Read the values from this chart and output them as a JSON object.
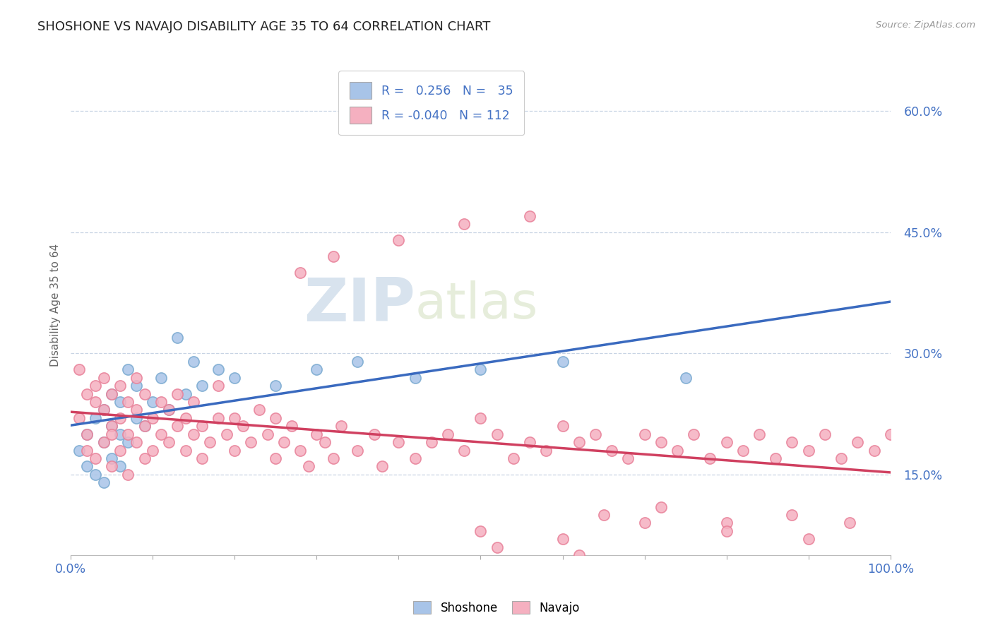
{
  "title": "SHOSHONE VS NAVAJO DISABILITY AGE 35 TO 64 CORRELATION CHART",
  "source_text": "Source: ZipAtlas.com",
  "ylabel": "Disability Age 35 to 64",
  "xlim": [
    0,
    100
  ],
  "ylim": [
    5,
    67
  ],
  "yticks": [
    15,
    30,
    45,
    60
  ],
  "xticks": [
    0,
    10,
    20,
    30,
    40,
    50,
    60,
    70,
    80,
    90,
    100
  ],
  "shoshone_color": "#a8c4e8",
  "shoshone_edge": "#7aaad0",
  "navajo_color": "#f5b0c0",
  "navajo_edge": "#e88098",
  "shoshone_line_color": "#3a6abf",
  "navajo_line_color": "#d04060",
  "shoshone_R": 0.256,
  "shoshone_N": 35,
  "navajo_R": -0.04,
  "navajo_N": 112,
  "watermark_zip": "ZIP",
  "watermark_atlas": "atlas",
  "bg_color": "#ffffff",
  "plot_bg": "#ffffff",
  "grid_color": "#c8d4e4",
  "title_color": "#222222",
  "axis_num_color": "#4472c4",
  "ylabel_color": "#666666",
  "legend_r_eq_color": "#333333",
  "legend_num_color": "#4472c4",
  "shoshone_x": [
    1,
    2,
    2,
    3,
    3,
    4,
    4,
    4,
    5,
    5,
    5,
    6,
    6,
    6,
    7,
    7,
    8,
    8,
    9,
    10,
    11,
    12,
    13,
    14,
    15,
    16,
    18,
    20,
    25,
    30,
    35,
    42,
    50,
    60,
    75
  ],
  "shoshone_y": [
    18,
    16,
    20,
    15,
    22,
    14,
    19,
    23,
    17,
    21,
    25,
    16,
    20,
    24,
    19,
    28,
    22,
    26,
    21,
    24,
    27,
    23,
    32,
    25,
    29,
    26,
    28,
    27,
    26,
    28,
    29,
    27,
    28,
    29,
    27
  ],
  "navajo_x": [
    1,
    1,
    2,
    2,
    2,
    3,
    3,
    3,
    4,
    4,
    4,
    5,
    5,
    5,
    5,
    6,
    6,
    6,
    7,
    7,
    7,
    8,
    8,
    8,
    9,
    9,
    9,
    10,
    10,
    11,
    11,
    12,
    12,
    13,
    13,
    14,
    14,
    15,
    15,
    16,
    16,
    17,
    18,
    18,
    19,
    20,
    20,
    21,
    22,
    23,
    24,
    25,
    25,
    26,
    27,
    28,
    29,
    30,
    31,
    32,
    33,
    35,
    37,
    38,
    40,
    42,
    44,
    46,
    48,
    50,
    52,
    54,
    56,
    58,
    60,
    62,
    64,
    66,
    68,
    70,
    72,
    74,
    76,
    78,
    80,
    82,
    84,
    86,
    88,
    90,
    92,
    94,
    96,
    98,
    100,
    28,
    32,
    40,
    48,
    56,
    65,
    72,
    80,
    88,
    95,
    50,
    60,
    70,
    80,
    90,
    52,
    62
  ],
  "navajo_y": [
    22,
    28,
    20,
    25,
    18,
    24,
    17,
    26,
    19,
    23,
    27,
    16,
    21,
    25,
    20,
    18,
    22,
    26,
    15,
    20,
    24,
    19,
    23,
    27,
    17,
    21,
    25,
    18,
    22,
    20,
    24,
    19,
    23,
    21,
    25,
    18,
    22,
    20,
    24,
    17,
    21,
    19,
    22,
    26,
    20,
    18,
    22,
    21,
    19,
    23,
    20,
    17,
    22,
    19,
    21,
    18,
    16,
    20,
    19,
    17,
    21,
    18,
    20,
    16,
    19,
    17,
    19,
    20,
    18,
    22,
    20,
    17,
    19,
    18,
    21,
    19,
    20,
    18,
    17,
    20,
    19,
    18,
    20,
    17,
    19,
    18,
    20,
    17,
    19,
    18,
    20,
    17,
    19,
    18,
    20,
    40,
    42,
    44,
    46,
    47,
    10,
    11,
    9,
    10,
    9,
    8,
    7,
    9,
    8,
    7,
    6,
    5
  ]
}
